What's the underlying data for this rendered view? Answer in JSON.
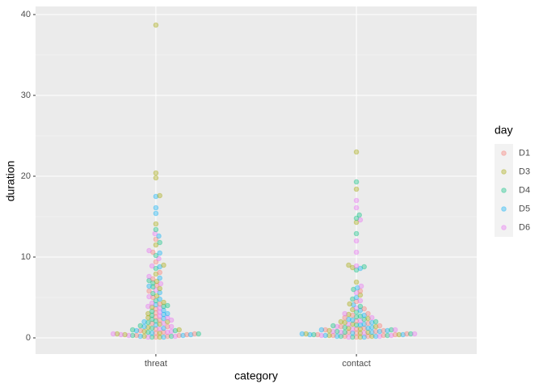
{
  "chart_data": {
    "type": "beeswarm",
    "x_label": "category",
    "y_label": "duration",
    "legend_title": "day",
    "categories": [
      "threat",
      "contact"
    ],
    "ylim": [
      -2,
      41
    ],
    "yticks": [
      0,
      10,
      20,
      30,
      40
    ],
    "grid": true,
    "legend_position": "right",
    "series": [
      {
        "name": "D1",
        "color": "#F8766D",
        "values": [
          [
            0.1,
            0.2,
            0.3,
            0.4,
            0.5,
            0.7,
            0.9,
            1.1,
            1.4,
            1.8,
            2.2,
            2.6,
            3.1,
            3.6,
            4.2,
            5.0,
            5.8,
            6.5,
            7.3,
            8.1,
            9.4,
            10.6,
            12.2,
            0.3,
            0.6
          ],
          [
            0.1,
            0.2,
            0.3,
            0.4,
            0.5,
            0.6,
            0.8,
            1.0,
            1.2,
            1.5,
            1.8,
            2.1,
            2.5,
            3.0,
            3.6,
            4.5,
            5.8,
            0.2,
            0.4,
            0.7,
            1.1,
            0.3,
            0.9,
            1.4,
            2.8
          ]
        ]
      },
      {
        "name": "D3",
        "color": "#A3A500",
        "values": [
          [
            0.1,
            0.2,
            0.4,
            0.6,
            0.8,
            1.0,
            1.3,
            1.7,
            2.0,
            2.5,
            3.0,
            3.8,
            4.4,
            5.2,
            6.1,
            7.0,
            7.9,
            9.0,
            11.5,
            14.1,
            17.6,
            19.8,
            20.4,
            38.7,
            0.5
          ],
          [
            0.1,
            0.2,
            0.3,
            0.5,
            0.7,
            0.9,
            1.1,
            1.4,
            1.7,
            2.0,
            2.4,
            2.9,
            3.5,
            4.2,
            5.3,
            6.9,
            8.7,
            9.0,
            14.3,
            18.4,
            23.0,
            0.4,
            0.6,
            1.2,
            1.9
          ]
        ]
      },
      {
        "name": "D4",
        "color": "#00BF7D",
        "values": [
          [
            0.1,
            0.3,
            0.5,
            0.7,
            1.0,
            1.2,
            1.5,
            1.9,
            2.3,
            2.8,
            3.3,
            3.9,
            4.6,
            5.5,
            6.3,
            7.1,
            8.6,
            10.2,
            11.8,
            13.4,
            0.2,
            0.9,
            2.1,
            4.0,
            6.8
          ],
          [
            0.1,
            0.2,
            0.4,
            0.5,
            0.7,
            1.0,
            1.3,
            1.6,
            2.0,
            2.3,
            2.7,
            3.2,
            3.9,
            4.8,
            6.0,
            8.4,
            8.8,
            12.9,
            14.8,
            15.2,
            19.3,
            0.3,
            0.8,
            1.5,
            2.6
          ]
        ]
      },
      {
        "name": "D5",
        "color": "#00B0F6",
        "values": [
          [
            0.1,
            0.2,
            0.4,
            0.6,
            0.9,
            1.2,
            1.6,
            2.0,
            2.4,
            2.9,
            3.4,
            4.1,
            4.8,
            5.6,
            6.4,
            7.4,
            8.8,
            10.5,
            12.6,
            15.4,
            16.1,
            17.5,
            0.3,
            1.4,
            3.0
          ],
          [
            0.1,
            0.2,
            0.3,
            0.4,
            0.6,
            0.8,
            1.0,
            1.3,
            1.6,
            1.9,
            2.3,
            2.8,
            3.4,
            4.1,
            5.0,
            6.2,
            8.6,
            0.2,
            0.5,
            0.9,
            1.2,
            1.7,
            0.4,
            0.7,
            2.2
          ]
        ]
      },
      {
        "name": "D6",
        "color": "#E76BF3",
        "values": [
          [
            0.1,
            0.2,
            0.3,
            0.5,
            0.8,
            1.1,
            1.4,
            1.8,
            2.2,
            2.7,
            3.2,
            3.7,
            4.3,
            5.1,
            5.9,
            6.7,
            7.6,
            8.9,
            9.8,
            10.8,
            12.9,
            0.4,
            0.7,
            2.5,
            3.9
          ],
          [
            0.1,
            0.2,
            0.3,
            0.5,
            0.6,
            0.8,
            1.1,
            1.4,
            1.7,
            2.1,
            2.5,
            3.0,
            3.7,
            4.6,
            5.6,
            6.4,
            8.9,
            10.6,
            12.0,
            14.6,
            16.1,
            17.0,
            0.3,
            0.7,
            1.0
          ]
        ]
      }
    ]
  }
}
